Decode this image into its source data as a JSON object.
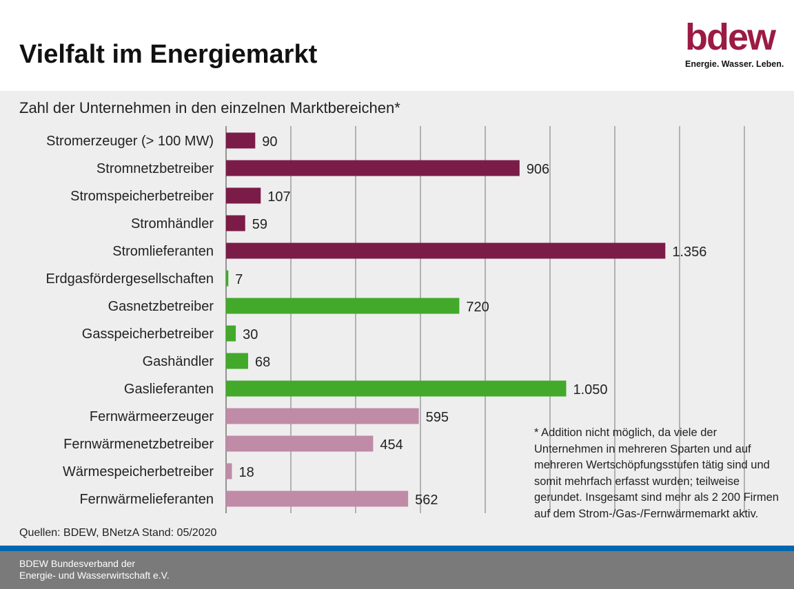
{
  "header": {
    "title": "Vielfalt im Energiemarkt",
    "logo_word": "bdew",
    "logo_tagline": "Energie. Wasser. Leben.",
    "logo_color": "#9b1b44"
  },
  "colors": {
    "strom": "#7b1c48",
    "gas": "#43a92b",
    "waerme": "#c08ba6",
    "gridline": "#555555"
  },
  "chart_data": {
    "type": "bar",
    "orientation": "horizontal",
    "title": "Zahl der Unternehmen in den einzelnen Marktbereichen*",
    "categories": [
      "Stromerzeuger (> 100 MW)",
      "Stromnetzbetreiber",
      "Stromspeicherbetreiber",
      "Stromhändler",
      "Stromlieferanten",
      "Erdgasfördergesellschaften",
      "Gasnetzbetreiber",
      "Gasspeicherbetreiber",
      "Gashändler",
      "Gaslieferanten",
      "Fernwärmeerzeuger",
      "Fernwärmenetzbetreiber",
      "Wärmespeicherbetreiber",
      "Fernwärmelieferanten"
    ],
    "values": [
      90,
      906,
      107,
      59,
      1356,
      7,
      720,
      30,
      68,
      1050,
      595,
      454,
      18,
      562
    ],
    "value_labels": [
      "90",
      "906",
      "107",
      "59",
      "1.356",
      "7",
      "720",
      "30",
      "68",
      "1.050",
      "595",
      "454",
      "18",
      "562"
    ],
    "groups": [
      "strom",
      "strom",
      "strom",
      "strom",
      "strom",
      "gas",
      "gas",
      "gas",
      "gas",
      "gas",
      "waerme",
      "waerme",
      "waerme",
      "waerme"
    ],
    "xlim": [
      0,
      1600
    ],
    "grid_step": 200,
    "grid": true,
    "legend": false
  },
  "footnote": "* Addition nicht möglich, da viele der Unternehmen in mehreren Sparten und auf mehreren Wertschöpfungsstufen tätig sind und somit mehrfach erfasst wurden; teilweise gerundet. Insgesamt sind mehr als 2 200 Firmen auf dem Strom-/Gas-/Fernwärmemarkt aktiv.",
  "sources": "Quellen: BDEW, BNetzA Stand: 05/2020",
  "footer": {
    "line1": "BDEW Bundesverband der",
    "line2": "Energie- und Wasserwirtschaft e.V."
  }
}
